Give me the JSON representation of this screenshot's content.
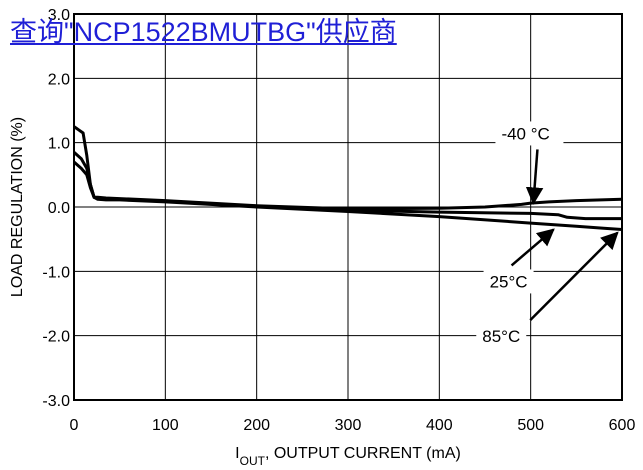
{
  "overlay": {
    "link_text": "查询\"NCP1522BMUTBG\"供应商",
    "link_color": "#1f1fd6"
  },
  "chart_data": {
    "type": "line",
    "title": "",
    "xlabel": {
      "prefix": "I",
      "sub": "OUT",
      "rest": ", OUTPUT CURRENT (mA)"
    },
    "ylabel": "LOAD REGULATION (%)",
    "xlim": [
      0,
      600
    ],
    "ylim": [
      -3.0,
      3.0
    ],
    "x_ticks": [
      0,
      100,
      200,
      300,
      400,
      500,
      600
    ],
    "y_ticks": [
      3.0,
      2.0,
      1.0,
      0.0,
      -1.0,
      -2.0,
      -3.0
    ],
    "y_tick_labels": [
      "3.0",
      "2.0",
      "1.0",
      "0.0",
      "-1.0",
      "-2.0",
      "-3.0"
    ],
    "grid": true,
    "series": [
      {
        "name": "-40 °C",
        "x": [
          0,
          5,
          10,
          14,
          18,
          22,
          26,
          35,
          50,
          100,
          200,
          300,
          400,
          450,
          490,
          500,
          520,
          550,
          600
        ],
        "y": [
          1.25,
          1.2,
          1.15,
          0.8,
          0.35,
          0.15,
          0.15,
          0.14,
          0.13,
          0.1,
          0.02,
          -0.03,
          -0.02,
          0.0,
          0.04,
          0.06,
          0.08,
          0.1,
          0.12
        ]
      },
      {
        "name": "25°C",
        "x": [
          0,
          8,
          14,
          18,
          22,
          26,
          35,
          50,
          100,
          200,
          300,
          400,
          500,
          530,
          540,
          560,
          600
        ],
        "y": [
          0.85,
          0.75,
          0.6,
          0.35,
          0.15,
          0.13,
          0.12,
          0.12,
          0.09,
          0.01,
          -0.05,
          -0.08,
          -0.1,
          -0.12,
          -0.16,
          -0.18,
          -0.18
        ]
      },
      {
        "name": "85°C",
        "x": [
          0,
          8,
          14,
          18,
          22,
          26,
          35,
          50,
          100,
          200,
          300,
          400,
          500,
          550,
          580,
          600
        ],
        "y": [
          0.7,
          0.6,
          0.5,
          0.3,
          0.15,
          0.12,
          0.11,
          0.11,
          0.08,
          0.0,
          -0.07,
          -0.15,
          -0.25,
          -0.3,
          -0.33,
          -0.35
        ]
      }
    ],
    "annotations": [
      {
        "text": "-40 °C",
        "series": 0,
        "label_at": [
          468,
          1.05
        ],
        "arrow_to": [
          503,
          0.06
        ]
      },
      {
        "text": "25°C",
        "series": 1,
        "label_at": [
          455,
          -1.25
        ],
        "arrow_to": [
          525,
          -0.35
        ]
      },
      {
        "text": "85°C",
        "series": 2,
        "label_at": [
          447,
          -2.1
        ],
        "arrow_to": [
          595,
          -0.4
        ]
      }
    ]
  }
}
